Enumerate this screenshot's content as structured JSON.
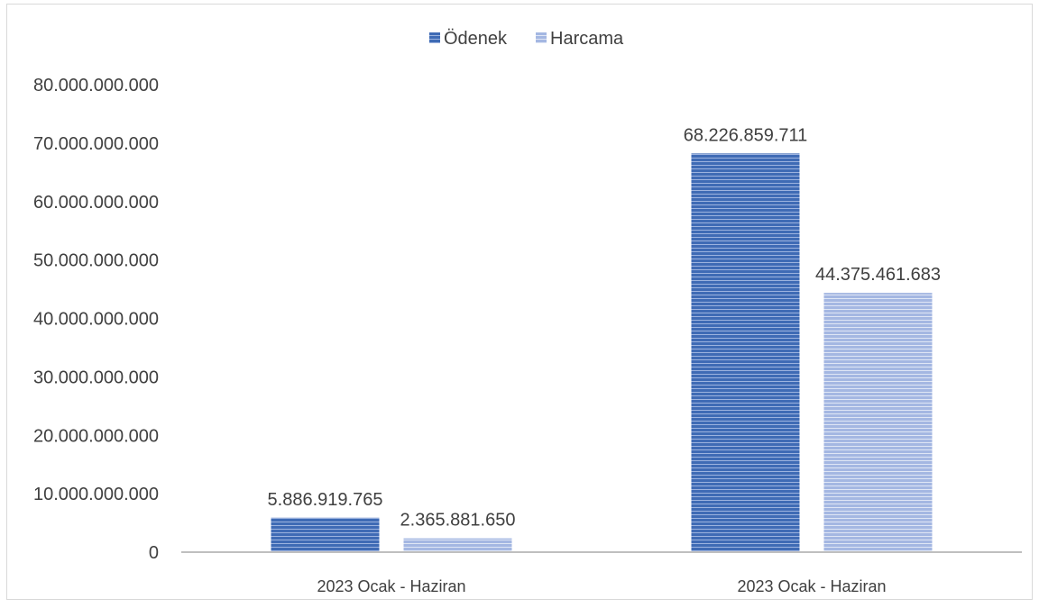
{
  "chart_data": {
    "type": "bar",
    "categories": [
      "2023 Ocak - Haziran",
      "2023 Ocak - Haziran"
    ],
    "series": [
      {
        "name": "Ödenek",
        "values": [
          5886919765,
          68226859711
        ],
        "labels": [
          "5.886.919.765",
          "68.226.859.711"
        ],
        "color": "#3f6bb5"
      },
      {
        "name": "Harcama",
        "values": [
          2365881650,
          44375461683
        ],
        "labels": [
          "2.365.881.650",
          "44.375.461.683"
        ],
        "color": "#9fb4e0"
      }
    ],
    "ylim": [
      0,
      80000000000
    ],
    "yticks": [
      0,
      10000000000,
      20000000000,
      30000000000,
      40000000000,
      50000000000,
      60000000000,
      70000000000,
      80000000000
    ],
    "ytick_labels": [
      "0",
      "10.000.000.000",
      "20.000.000.000",
      "30.000.000.000",
      "40.000.000.000",
      "50.000.000.000",
      "60.000.000.000",
      "70.000.000.000",
      "80.000.000.000"
    ],
    "grid": false,
    "legend_position": "top-center",
    "title": "",
    "xlabel": "",
    "ylabel": ""
  }
}
